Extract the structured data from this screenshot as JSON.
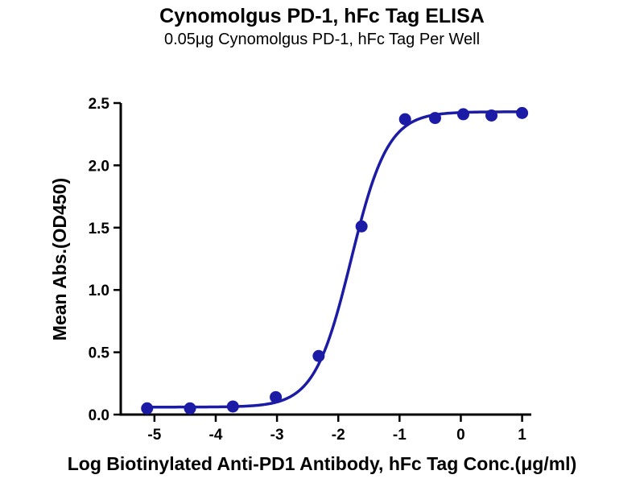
{
  "chart_data": {
    "type": "scatter",
    "title": "Cynomolgus PD-1, hFc Tag ELISA",
    "subtitle": "0.05μg Cynomolgus PD-1, hFc Tag Per Well",
    "xlabel": "Log Biotinylated Anti-PD1 Antibody, hFc Tag Conc.(μg/ml)",
    "ylabel": "Mean Abs.(OD450)",
    "series": [
      {
        "name": "Biotinylated Anti-PD1 Antibody, hFc Tag",
        "x": [
          -5.12,
          -4.42,
          -3.72,
          -3.02,
          -2.32,
          -1.62,
          -0.91,
          -0.42,
          0.04,
          0.5,
          1.0
        ],
        "y": [
          0.05,
          0.05,
          0.065,
          0.14,
          0.47,
          1.51,
          2.37,
          2.38,
          2.41,
          2.4,
          2.42
        ]
      }
    ],
    "fit_curve": {
      "model": "4PL-sigmoidal",
      "bottom": 0.06,
      "top": 2.43,
      "logEC50": -1.79,
      "hillslope": 1.45
    },
    "xlim": [
      -5.55,
      1.15
    ],
    "ylim": [
      0,
      2.5
    ],
    "xticks": [
      "-5",
      "-4",
      "-3",
      "-2",
      "-1",
      "0",
      "1"
    ],
    "yticks": [
      "0.0",
      "0.5",
      "1.0",
      "1.5",
      "2.0",
      "2.5"
    ],
    "grid": false,
    "legend": "none",
    "color": "#1b1ba6",
    "axis_color": "#000000"
  }
}
